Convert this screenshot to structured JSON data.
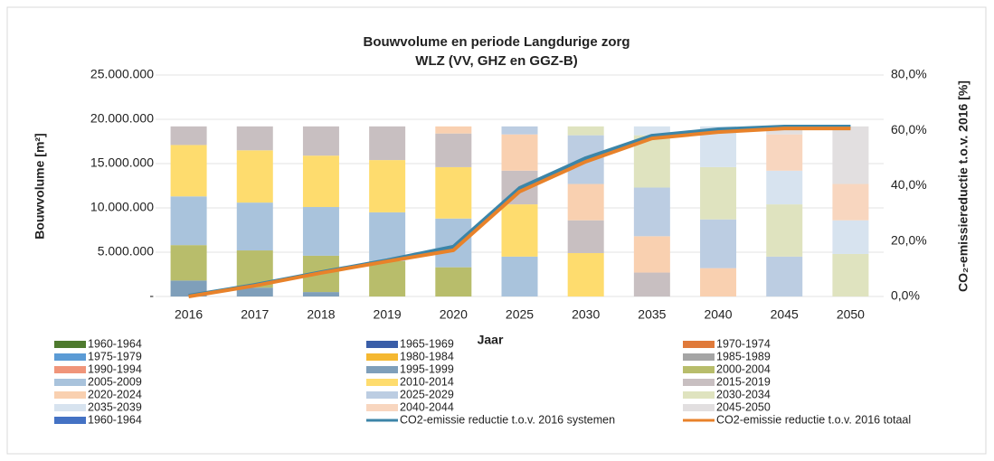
{
  "chart_data": {
    "type": "bar",
    "stacked": true,
    "title": "Bouwvolume en periode Langdurige zorg",
    "subtitle": "WLZ (VV, GHZ en GGZ-B)",
    "x_label": "Jaar",
    "y_label": "Bouwvolume [m²]",
    "y2_label": "CO₂-emissiereductie t.o.v. 2016 [%]",
    "categories": [
      "2016",
      "2017",
      "2018",
      "2019",
      "2020",
      "2025",
      "2030",
      "2035",
      "2040",
      "2045",
      "2050"
    ],
    "ylim": [
      0,
      25000000
    ],
    "yticks": [
      {
        "value": 0,
        "label": "-"
      },
      {
        "value": 5000000,
        "label": "5.000.000"
      },
      {
        "value": 10000000,
        "label": "10.000.000"
      },
      {
        "value": 15000000,
        "label": "15.000.000"
      },
      {
        "value": 20000000,
        "label": "20.000.000"
      },
      {
        "value": 25000000,
        "label": "25.000.000"
      }
    ],
    "y2lim": [
      0,
      80
    ],
    "y2ticks": [
      {
        "value": 0,
        "label": "0,0%"
      },
      {
        "value": 20,
        "label": "20,0%"
      },
      {
        "value": 40,
        "label": "40,0%"
      },
      {
        "value": 60,
        "label": "60,0%"
      },
      {
        "value": 80,
        "label": "80,0%"
      }
    ],
    "grid": true,
    "legend": "bottom",
    "series": [
      {
        "name": "1960-1964",
        "color": "#4e7a2e",
        "values": [
          0,
          0,
          0,
          0,
          0,
          0,
          0,
          0,
          0,
          0,
          0
        ]
      },
      {
        "name": "1965-1969",
        "color": "#3a5ea8",
        "values": [
          0,
          0,
          0,
          0,
          0,
          0,
          0,
          0,
          0,
          0,
          0
        ]
      },
      {
        "name": "1970-1974",
        "color": "#e07a3a",
        "values": [
          0,
          0,
          0,
          0,
          0,
          0,
          0,
          0,
          0,
          0,
          0
        ]
      },
      {
        "name": "1975-1979",
        "color": "#5b9bd5",
        "values": [
          0,
          0,
          0,
          0,
          0,
          0,
          0,
          0,
          0,
          0,
          0
        ]
      },
      {
        "name": "1980-1984",
        "color": "#f5b831",
        "values": [
          0,
          0,
          0,
          0,
          0,
          0,
          0,
          0,
          0,
          0,
          0
        ]
      },
      {
        "name": "1985-1989",
        "color": "#a5a5a5",
        "values": [
          0,
          0,
          0,
          0,
          0,
          0,
          0,
          0,
          0,
          0,
          0
        ]
      },
      {
        "name": "1990-1994",
        "color": "#f0957a",
        "values": [
          0,
          0,
          0,
          0,
          0,
          0,
          0,
          0,
          0,
          0,
          0
        ]
      },
      {
        "name": "1995-1999",
        "color": "#7f9fba",
        "values": [
          1800000,
          1000000,
          500000,
          0,
          0,
          0,
          0,
          0,
          0,
          0,
          0
        ]
      },
      {
        "name": "2000-2004",
        "color": "#b8bd6b",
        "values": [
          4000000,
          4200000,
          4100000,
          4000000,
          3300000,
          0,
          0,
          0,
          0,
          0,
          0
        ]
      },
      {
        "name": "2005-2009",
        "color": "#a9c3dc",
        "values": [
          5500000,
          5400000,
          5500000,
          5500000,
          5500000,
          4500000,
          0,
          0,
          0,
          0,
          0
        ]
      },
      {
        "name": "2010-2014",
        "color": "#fedc6e",
        "values": [
          5800000,
          5900000,
          5800000,
          5900000,
          5800000,
          5900000,
          4900000,
          0,
          0,
          0,
          0
        ]
      },
      {
        "name": "2015-2019",
        "color": "#c8bfc1",
        "values": [
          2100000,
          2700000,
          3300000,
          3800000,
          3800000,
          3800000,
          3700000,
          2700000,
          0,
          0,
          0
        ]
      },
      {
        "name": "2020-2024",
        "color": "#f9d0b0",
        "values": [
          0,
          0,
          0,
          0,
          800000,
          4100000,
          4100000,
          4100000,
          3200000,
          0,
          0
        ]
      },
      {
        "name": "2025-2029",
        "color": "#bccde2",
        "values": [
          0,
          0,
          0,
          0,
          0,
          900000,
          5500000,
          5500000,
          5500000,
          4500000,
          0
        ]
      },
      {
        "name": "2030-2034",
        "color": "#dfe3bf",
        "values": [
          0,
          0,
          0,
          0,
          0,
          0,
          1000000,
          5900000,
          5900000,
          5900000,
          4800000
        ]
      },
      {
        "name": "2035-2039",
        "color": "#d7e3ef",
        "values": [
          0,
          0,
          0,
          0,
          0,
          0,
          0,
          1000000,
          4600000,
          3800000,
          3800000
        ]
      },
      {
        "name": "2040-2044",
        "color": "#f8d6bf",
        "values": [
          0,
          0,
          0,
          0,
          0,
          0,
          0,
          0,
          0,
          4100000,
          4100000
        ]
      },
      {
        "name": "2045-2050",
        "color": "#e2dfe0",
        "values": [
          0,
          0,
          0,
          0,
          0,
          0,
          0,
          0,
          0,
          900000,
          6500000
        ]
      },
      {
        "name": "1960-1964",
        "color": "#4472c4",
        "values": [
          0,
          0,
          0,
          0,
          0,
          0,
          0,
          0,
          0,
          0,
          0
        ]
      },
      {
        "name": "CO2-emissie reductie t.o.v. 2016 systemen",
        "type": "line",
        "axis": "y2",
        "color": "#3c85a8",
        "values": [
          0.3,
          4.2,
          8.8,
          13.1,
          18.0,
          39.2,
          50.0,
          58.1,
          60.4,
          61.4,
          61.4
        ]
      },
      {
        "name": "CO2-emissie reductie t.o.v. 2016 totaal",
        "type": "line",
        "axis": "y2",
        "color": "#e8822a",
        "values": [
          0,
          3.9,
          8.5,
          12.7,
          16.7,
          37.9,
          48.7,
          57.1,
          59.4,
          60.7,
          60.7
        ]
      }
    ]
  }
}
